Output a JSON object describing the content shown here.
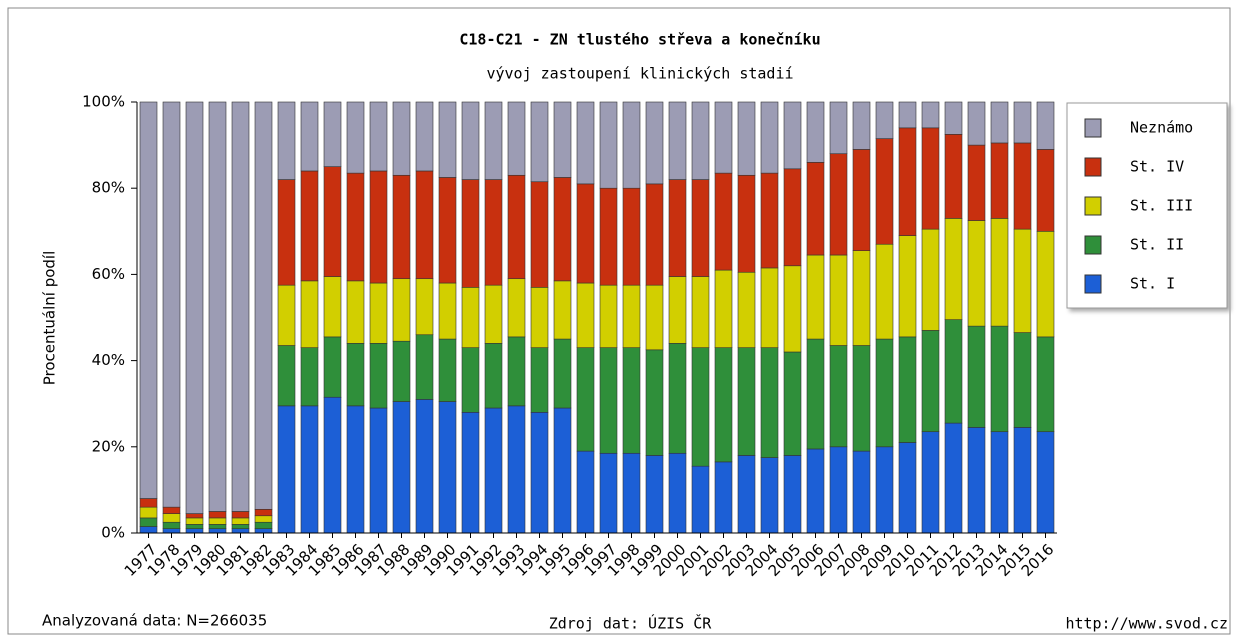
{
  "chart_data": {
    "type": "stacked_bar_100",
    "title": "C18-C21 - ZN tlustého střeva a konečníku",
    "subtitle": "vývoj zastoupení klinických stadií",
    "y_label": "Procentuální podíl",
    "footer_left": "Analyzovaná data: N=266035",
    "footer_center": "Zdroj dat: ÚZIS ČR",
    "footer_right": "http://www.svod.cz",
    "categories": [
      "1977",
      "1978",
      "1979",
      "1980",
      "1981",
      "1982",
      "1983",
      "1984",
      "1985",
      "1986",
      "1987",
      "1988",
      "1989",
      "1990",
      "1991",
      "1992",
      "1993",
      "1994",
      "1995",
      "1996",
      "1997",
      "1998",
      "1999",
      "2000",
      "2001",
      "2002",
      "2003",
      "2004",
      "2005",
      "2006",
      "2007",
      "2008",
      "2009",
      "2010",
      "2011",
      "2012",
      "2013",
      "2014",
      "2015",
      "2016"
    ],
    "series": [
      {
        "name": "St. I",
        "color": "#1c5fd6",
        "values": [
          1.5,
          1,
          1,
          1,
          1,
          1,
          29.5,
          29.5,
          31.5,
          29.5,
          29,
          30.5,
          31,
          30.5,
          28,
          29,
          29.5,
          28,
          29,
          19,
          18.5,
          18.5,
          18,
          18.5,
          15.5,
          16.5,
          18,
          17.5,
          18,
          19.5,
          20,
          19,
          20,
          21,
          23.5,
          25.5,
          24.5,
          23.5,
          24.5,
          23.5
        ]
      },
      {
        "name": "St. II",
        "color": "#2f8f3a",
        "values": [
          2,
          1.5,
          1,
          1,
          1,
          1.5,
          14,
          13.5,
          14,
          14.5,
          15,
          14,
          15,
          14.5,
          15,
          15,
          16,
          15,
          16,
          24,
          24.5,
          24.5,
          24.5,
          25.5,
          27.5,
          26.5,
          25,
          25.5,
          24,
          25.5,
          23.5,
          24.5,
          25,
          24.5,
          23.5,
          24,
          23.5,
          24.5,
          22,
          22
        ]
      },
      {
        "name": "St. III",
        "color": "#d2cf00",
        "values": [
          2.5,
          2,
          1.5,
          1.5,
          1.5,
          1.5,
          14,
          15.5,
          14,
          14.5,
          14,
          14.5,
          13,
          13,
          14,
          13.5,
          13.5,
          14,
          13.5,
          15,
          14.5,
          14.5,
          15,
          15.5,
          16.5,
          18,
          17.5,
          18.5,
          20,
          19.5,
          21,
          22,
          22,
          23.5,
          23.5,
          23.5,
          24.5,
          25,
          24,
          24.5
        ]
      },
      {
        "name": "St. IV",
        "color": "#c8300f",
        "values": [
          2,
          1.5,
          1,
          1.5,
          1.5,
          1.5,
          24.5,
          25.5,
          25.5,
          25,
          26,
          24,
          25,
          24.5,
          25,
          24.5,
          24,
          24.5,
          24,
          23,
          22.5,
          22.5,
          23.5,
          22.5,
          22.5,
          22.5,
          22.5,
          22,
          22.5,
          21.5,
          23.5,
          23.5,
          24.5,
          25,
          23.5,
          19.5,
          17.5,
          17.5,
          20,
          19
        ]
      },
      {
        "name": "Neznámo",
        "color": "#9c9cb4",
        "values": [
          92,
          94,
          95.5,
          95,
          95,
          94.5,
          18,
          16,
          15,
          16.5,
          16,
          17,
          16,
          17.5,
          18,
          18,
          17,
          18.5,
          17.5,
          19,
          20,
          20,
          19,
          18,
          18,
          16.5,
          17,
          16.5,
          15.5,
          14,
          12,
          11,
          8.5,
          6,
          6,
          7.5,
          10,
          9.5,
          9.5,
          11
        ]
      }
    ],
    "ylim": [
      0,
      100
    ],
    "yticks": [
      {
        "value": 0,
        "label": "0%"
      },
      {
        "value": 20,
        "label": "20%"
      },
      {
        "value": 40,
        "label": "40%"
      },
      {
        "value": 60,
        "label": "60%"
      },
      {
        "value": 80,
        "label": "80%"
      },
      {
        "value": 100,
        "label": "100%"
      }
    ],
    "legend": "right"
  }
}
